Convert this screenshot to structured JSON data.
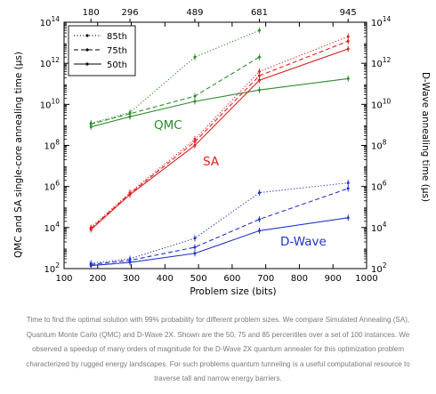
{
  "chart_data": {
    "type": "line",
    "x_axis": {
      "label": "Problem size (bits)",
      "range": [
        100,
        1000
      ],
      "ticks": [
        "100",
        "200",
        "300",
        "400",
        "500",
        "600",
        "700",
        "800",
        "900",
        "1000"
      ]
    },
    "top_axis": {
      "ticks": [
        "180",
        "296",
        "489",
        "681",
        "945"
      ]
    },
    "left_axis": {
      "label": "QMC and SA single-core annealing time (μs)",
      "scale": "log",
      "range": [
        100,
        100000000000000.0
      ],
      "exponents": [
        "2",
        "4",
        "6",
        "8",
        "10",
        "12",
        "14"
      ]
    },
    "right_axis": {
      "label": "D-Wave annealing time (μs)",
      "scale": "log",
      "range": [
        100,
        100000000000000.0
      ],
      "exponents": [
        "2",
        "4",
        "6",
        "8",
        "10",
        "12",
        "14"
      ]
    },
    "legend": {
      "position": "top-left",
      "entries": [
        {
          "label": "85th",
          "style": "dotted"
        },
        {
          "label": "75th",
          "style": "dashed"
        },
        {
          "label": "50th",
          "style": "solid"
        }
      ]
    },
    "group_labels": {
      "qmc": "QMC",
      "sa": "SA",
      "dwave": "D-Wave"
    },
    "colors": {
      "qmc": "#2e8b2e",
      "sa": "#dd2222",
      "dwave": "#2233cc",
      "legend": "#000000"
    },
    "grid": false,
    "x": [
      180,
      296,
      489,
      681,
      945
    ],
    "series": [
      {
        "group": "qmc",
        "name": "85th",
        "style": "dotted",
        "x": [
          180,
          296,
          489,
          681
        ],
        "y": [
          1200000000.0,
          4000000000.0,
          2000000000000.0,
          40000000000000.0
        ]
      },
      {
        "group": "qmc",
        "name": "75th",
        "style": "dashed",
        "x": [
          180,
          296,
          489,
          681
        ],
        "y": [
          1100000000.0,
          3500000000.0,
          25000000000.0,
          2000000000000.0
        ]
      },
      {
        "group": "qmc",
        "name": "50th",
        "style": "solid",
        "x": [
          180,
          296,
          489,
          681,
          945
        ],
        "y": [
          800000000.0,
          2500000000.0,
          14000000000.0,
          50000000000.0,
          180000000000.0
        ]
      },
      {
        "group": "sa",
        "name": "85th",
        "style": "dotted",
        "x": [
          180,
          296,
          489,
          681,
          945
        ],
        "y": [
          10000.0,
          500000.0,
          200000000.0,
          400000000000.0,
          20000000000000.0
        ]
      },
      {
        "group": "sa",
        "name": "75th",
        "style": "dashed",
        "x": [
          180,
          296,
          489,
          681,
          945
        ],
        "y": [
          9000.0,
          450000.0,
          150000000.0,
          250000000000.0,
          12000000000000.0
        ]
      },
      {
        "group": "sa",
        "name": "50th",
        "style": "solid",
        "x": [
          180,
          296,
          489,
          681,
          945
        ],
        "y": [
          8000.0,
          400000.0,
          100000000.0,
          150000000000.0,
          5000000000000.0
        ]
      },
      {
        "group": "dwave",
        "name": "85th",
        "style": "dotted",
        "x": [
          180,
          296,
          489,
          681,
          945
        ],
        "y": [
          180,
          300,
          3000,
          500000.0,
          1500000.0
        ]
      },
      {
        "group": "dwave",
        "name": "75th",
        "style": "dashed",
        "x": [
          180,
          296,
          489,
          681,
          945
        ],
        "y": [
          160,
          250,
          1100,
          25000.0,
          800000.0
        ]
      },
      {
        "group": "dwave",
        "name": "50th",
        "style": "solid",
        "x": [
          180,
          296,
          489,
          681,
          945
        ],
        "y": [
          140,
          200,
          550,
          7000,
          30000.0
        ]
      }
    ]
  },
  "caption": "Time to find the optimal solution with 99% probability for different problem sizes. We compare Simulated Annealing (SA), Quantum Monte Carlo (QMC) and D-Wave 2X. Shown are the 50, 75 and 85 percentiles over a set of 100 instances. We observed a speedup of many orders of magnitude for the D-Wave 2X quantum annealer for this optimization problem characterized by rugged energy landscapes. For such problems quantum tunneling is a useful computational resource to traverse tall and narrow energy barriers."
}
